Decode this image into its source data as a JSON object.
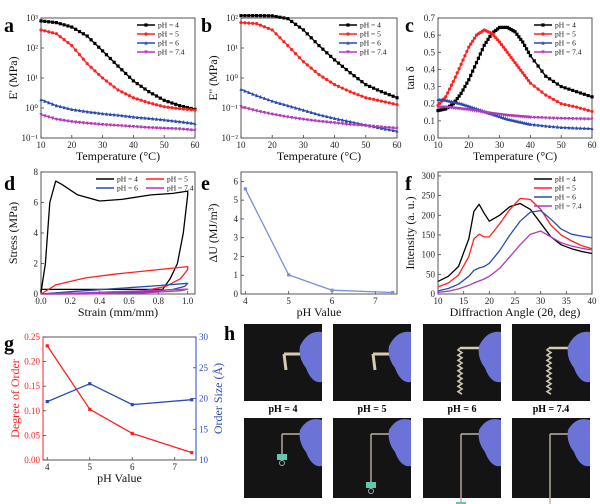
{
  "figure": {
    "panels": [
      "a",
      "b",
      "c",
      "d",
      "e",
      "f",
      "g",
      "h"
    ]
  },
  "chart_data": [
    {
      "id": "a",
      "type": "line",
      "title": "",
      "xlabel": "Temperature (°C)",
      "ylabel": "E' (MPa)",
      "yscale": "log",
      "xlim": [
        10,
        60
      ],
      "ylim": [
        0.1,
        1000
      ],
      "xticks": [
        10,
        20,
        30,
        40,
        50,
        60
      ],
      "yticks": [
        {
          "v": 0.1,
          "label": "10⁻¹"
        },
        {
          "v": 1,
          "label": "10⁰"
        },
        {
          "v": 10,
          "label": "10¹"
        },
        {
          "v": 100,
          "label": "10²"
        },
        {
          "v": 1000,
          "label": "10³"
        }
      ],
      "legend": "top-right",
      "x": [
        10,
        15,
        20,
        25,
        30,
        35,
        40,
        45,
        50,
        55,
        60
      ],
      "series": [
        {
          "name": "pH = 4",
          "color": "#000000",
          "marker": "square",
          "values": [
            800,
            700,
            500,
            250,
            80,
            25,
            8,
            3.5,
            1.8,
            1.2,
            0.9
          ]
        },
        {
          "name": "pH = 5",
          "color": "#ff2020",
          "marker": "circle",
          "values": [
            400,
            300,
            120,
            30,
            10,
            4,
            2.2,
            1.5,
            1.1,
            0.95,
            0.85
          ]
        },
        {
          "name": "pH = 6",
          "color": "#2a4bb0",
          "marker": "triangle-up",
          "values": [
            1.9,
            1.2,
            0.9,
            0.75,
            0.65,
            0.58,
            0.5,
            0.45,
            0.4,
            0.35,
            0.3
          ]
        },
        {
          "name": "pH = 7.4",
          "color": "#b03ab8",
          "marker": "triangle-down",
          "values": [
            0.6,
            0.42,
            0.35,
            0.31,
            0.28,
            0.26,
            0.24,
            0.22,
            0.21,
            0.2,
            0.18
          ]
        }
      ]
    },
    {
      "id": "b",
      "type": "line",
      "xlabel": "Temperature (°C)",
      "ylabel": "E'' (MPa)",
      "yscale": "log",
      "xlim": [
        10,
        60
      ],
      "ylim": [
        0.01,
        100
      ],
      "xticks": [
        10,
        20,
        30,
        40,
        50,
        60
      ],
      "yticks": [
        {
          "v": 0.01,
          "label": "10⁻²"
        },
        {
          "v": 0.1,
          "label": "10⁻¹"
        },
        {
          "v": 1,
          "label": "10⁰"
        },
        {
          "v": 10,
          "label": "10¹"
        },
        {
          "v": 100,
          "label": "10²"
        }
      ],
      "legend": "top-right",
      "x": [
        10,
        15,
        20,
        25,
        30,
        35,
        40,
        45,
        50,
        55,
        60
      ],
      "series": [
        {
          "name": "pH = 4",
          "color": "#000000",
          "marker": "square",
          "values": [
            120,
            120,
            118,
            95,
            40,
            12,
            4,
            1.5,
            0.6,
            0.35,
            0.22
          ]
        },
        {
          "name": "pH = 5",
          "color": "#ff2020",
          "marker": "circle",
          "values": [
            70,
            65,
            40,
            12,
            3.5,
            1.3,
            0.6,
            0.35,
            0.22,
            0.17,
            0.13
          ]
        },
        {
          "name": "pH = 6",
          "color": "#2a4bb0",
          "marker": "triangle-up",
          "values": [
            0.42,
            0.26,
            0.17,
            0.12,
            0.085,
            0.06,
            0.045,
            0.035,
            0.027,
            0.021,
            0.017
          ]
        },
        {
          "name": "pH = 7.4",
          "color": "#b03ab8",
          "marker": "triangle-down",
          "values": [
            0.11,
            0.08,
            0.062,
            0.05,
            0.042,
            0.036,
            0.032,
            0.028,
            0.026,
            0.023,
            0.021
          ]
        }
      ]
    },
    {
      "id": "c",
      "type": "line",
      "xlabel": "Temperature (°C)",
      "ylabel": "tan δ",
      "xlim": [
        10,
        60
      ],
      "ylim": [
        0.0,
        0.7
      ],
      "xticks": [
        10,
        20,
        30,
        40,
        50,
        60
      ],
      "yticks": [
        {
          "v": 0.0,
          "label": "0.0"
        },
        {
          "v": 0.1,
          "label": "0.1"
        },
        {
          "v": 0.2,
          "label": "0.2"
        },
        {
          "v": 0.3,
          "label": "0.3"
        },
        {
          "v": 0.4,
          "label": "0.4"
        },
        {
          "v": 0.5,
          "label": "0.5"
        },
        {
          "v": 0.6,
          "label": "0.6"
        },
        {
          "v": 0.7,
          "label": "0.7"
        }
      ],
      "legend": "top-right",
      "x": [
        10,
        12.5,
        15,
        17.5,
        20,
        22.5,
        25,
        27.5,
        30,
        32.5,
        35,
        37.5,
        40,
        45,
        50,
        55,
        60
      ],
      "series": [
        {
          "name": "pH = 4",
          "color": "#000000",
          "marker": "square",
          "values": [
            0.16,
            0.17,
            0.2,
            0.26,
            0.34,
            0.44,
            0.54,
            0.61,
            0.645,
            0.645,
            0.62,
            0.56,
            0.48,
            0.36,
            0.3,
            0.27,
            0.24
          ]
        },
        {
          "name": "pH = 5",
          "color": "#ff2020",
          "marker": "circle",
          "values": [
            0.19,
            0.24,
            0.33,
            0.43,
            0.53,
            0.6,
            0.63,
            0.61,
            0.56,
            0.5,
            0.44,
            0.38,
            0.32,
            0.25,
            0.2,
            0.18,
            0.155
          ]
        },
        {
          "name": "pH = 6",
          "color": "#2a4bb0",
          "marker": "triangle-up",
          "values": [
            0.225,
            0.22,
            0.21,
            0.2,
            0.185,
            0.17,
            0.155,
            0.14,
            0.125,
            0.11,
            0.1,
            0.09,
            0.08,
            0.07,
            0.062,
            0.058,
            0.055
          ]
        },
        {
          "name": "pH = 7.4",
          "color": "#b03ab8",
          "marker": "triangle-down",
          "values": [
            0.18,
            0.18,
            0.175,
            0.17,
            0.165,
            0.158,
            0.15,
            0.143,
            0.137,
            0.132,
            0.128,
            0.124,
            0.121,
            0.117,
            0.114,
            0.112,
            0.11
          ]
        }
      ]
    },
    {
      "id": "d",
      "type": "line",
      "xlabel": "Strain (mm/mm)",
      "ylabel": "Stress (MPa)",
      "xlim": [
        0,
        1.05
      ],
      "ylim": [
        0,
        8
      ],
      "xticks": [
        {
          "v": 0,
          "label": "0.0"
        },
        {
          "v": 0.2,
          "label": "0.2"
        },
        {
          "v": 0.4,
          "label": "0.4"
        },
        {
          "v": 0.6,
          "label": "0.6"
        },
        {
          "v": 0.8,
          "label": "0.8"
        },
        {
          "v": 1.0,
          "label": "1.0"
        }
      ],
      "yticks": [
        {
          "v": 0,
          "label": "0"
        },
        {
          "v": 2,
          "label": "2"
        },
        {
          "v": 4,
          "label": "4"
        },
        {
          "v": 6,
          "label": "6"
        },
        {
          "v": 8,
          "label": "8"
        }
      ],
      "legend": "top (2 columns)",
      "series": [
        {
          "name": "pH = 4",
          "color": "#000000",
          "points": [
            [
              0,
              0.1
            ],
            [
              0.03,
              2
            ],
            [
              0.06,
              6
            ],
            [
              0.1,
              7.4
            ],
            [
              0.14,
              7.2
            ],
            [
              0.25,
              6.5
            ],
            [
              0.4,
              6.1
            ],
            [
              0.55,
              6.2
            ],
            [
              0.75,
              6.5
            ],
            [
              0.9,
              6.6
            ],
            [
              1.0,
              6.75
            ],
            [
              1.0,
              6.5
            ],
            [
              0.97,
              4
            ],
            [
              0.93,
              2
            ],
            [
              0.88,
              1
            ],
            [
              0.83,
              0.3
            ],
            [
              0.6,
              0.3
            ],
            [
              0.3,
              0.3
            ],
            [
              0,
              0.3
            ]
          ]
        },
        {
          "name": "pH = 5",
          "color": "#ff2020",
          "points": [
            [
              0,
              0
            ],
            [
              0.1,
              0.6
            ],
            [
              0.3,
              1.05
            ],
            [
              0.5,
              1.3
            ],
            [
              0.8,
              1.6
            ],
            [
              1.0,
              1.8
            ],
            [
              1.0,
              1.6
            ],
            [
              0.95,
              1.0
            ],
            [
              0.85,
              0.5
            ],
            [
              0.7,
              0.2
            ],
            [
              0.5,
              0.05
            ],
            [
              0.3,
              0
            ],
            [
              0,
              0
            ]
          ]
        },
        {
          "name": "pH = 6",
          "color": "#2a4bb0",
          "points": [
            [
              0,
              0
            ],
            [
              0.2,
              0.15
            ],
            [
              0.5,
              0.35
            ],
            [
              0.8,
              0.55
            ],
            [
              1.0,
              0.7
            ],
            [
              0.98,
              0.5
            ],
            [
              0.9,
              0.3
            ],
            [
              0.7,
              0.12
            ],
            [
              0.4,
              0.02
            ],
            [
              0,
              0
            ]
          ]
        },
        {
          "name": "pH = 7.4",
          "color": "#b03ab8",
          "points": [
            [
              0,
              0
            ],
            [
              0.3,
              0.08
            ],
            [
              0.6,
              0.18
            ],
            [
              1.0,
              0.32
            ],
            [
              0.95,
              0.2
            ],
            [
              0.7,
              0.08
            ],
            [
              0.4,
              0.01
            ],
            [
              0,
              0
            ]
          ]
        }
      ]
    },
    {
      "id": "e",
      "type": "line",
      "xlabel": "pH Value",
      "ylabel": "ΔU (MJ/m³)",
      "xlim": [
        3.9,
        7.5
      ],
      "ylim": [
        0,
        6.5
      ],
      "xticks": [
        {
          "v": 4,
          "label": "4"
        },
        {
          "v": 5,
          "label": "5"
        },
        {
          "v": 6,
          "label": "6"
        },
        {
          "v": 7,
          "label": "7"
        }
      ],
      "yticks": [
        {
          "v": 0,
          "label": "0"
        },
        {
          "v": 1,
          "label": "1"
        },
        {
          "v": 2,
          "label": "2"
        },
        {
          "v": 3,
          "label": "3"
        },
        {
          "v": 4,
          "label": "4"
        },
        {
          "v": 5,
          "label": "5"
        },
        {
          "v": 6,
          "label": "6"
        }
      ],
      "series": [
        {
          "name": "ΔU",
          "color": "#7b8fd8",
          "marker": "square",
          "x": [
            4,
            5,
            6,
            7.4
          ],
          "values": [
            5.6,
            1.02,
            0.2,
            0.08
          ]
        }
      ]
    },
    {
      "id": "f",
      "type": "line",
      "xlabel": "Diffraction Angle (2θ, deg)",
      "ylabel": "Intensity (a. u.)",
      "xlim": [
        10,
        40
      ],
      "ylim": [
        0,
        310
      ],
      "xticks": [
        10,
        15,
        20,
        25,
        30,
        35,
        40
      ],
      "yticks": [
        {
          "v": 0,
          "label": "0"
        },
        {
          "v": 50,
          "label": "50"
        },
        {
          "v": 100,
          "label": "100"
        },
        {
          "v": 150,
          "label": "150"
        },
        {
          "v": 200,
          "label": "200"
        },
        {
          "v": 250,
          "label": "250"
        },
        {
          "v": 300,
          "label": "300"
        }
      ],
      "legend": "top-right",
      "x": [
        10,
        12,
        14,
        16,
        17,
        18,
        19,
        20,
        22,
        24,
        26,
        28,
        30,
        32,
        34,
        36,
        38,
        40
      ],
      "series": [
        {
          "name": "pH = 4",
          "color": "#000000",
          "values": [
            32,
            45,
            70,
            140,
            210,
            228,
            205,
            185,
            200,
            222,
            230,
            215,
            180,
            145,
            125,
            115,
            108,
            103
          ]
        },
        {
          "name": "pH = 5",
          "color": "#ff2020",
          "values": [
            18,
            28,
            48,
            95,
            140,
            152,
            145,
            145,
            178,
            215,
            243,
            240,
            215,
            175,
            150,
            135,
            123,
            115
          ]
        },
        {
          "name": "pH = 6",
          "color": "#2a4bb0",
          "values": [
            8,
            14,
            25,
            45,
            60,
            66,
            70,
            78,
            110,
            150,
            185,
            208,
            212,
            190,
            165,
            152,
            147,
            143
          ]
        },
        {
          "name": "pH = 7.4",
          "color": "#b03ab8",
          "values": [
            4,
            7,
            13,
            22,
            28,
            33,
            38,
            45,
            65,
            95,
            125,
            152,
            160,
            145,
            130,
            122,
            116,
            112
          ]
        }
      ]
    },
    {
      "id": "g",
      "type": "line",
      "xlabel": "pH Value",
      "ylabel": "Degree of Order",
      "ylabel_right": "Order Size (Å)",
      "xlim": [
        3.9,
        7.5
      ],
      "ylim": [
        0,
        0.25
      ],
      "ylim_right": [
        10,
        30
      ],
      "xticks": [
        {
          "v": 4,
          "label": "4"
        },
        {
          "v": 5,
          "label": "5"
        },
        {
          "v": 6,
          "label": "6"
        },
        {
          "v": 7,
          "label": "7"
        }
      ],
      "yticks": [
        {
          "v": 0,
          "label": "0.00"
        },
        {
          "v": 0.05,
          "label": "0.05"
        },
        {
          "v": 0.1,
          "label": "0.10"
        },
        {
          "v": 0.15,
          "label": "0.15"
        },
        {
          "v": 0.2,
          "label": "0.20"
        },
        {
          "v": 0.25,
          "label": "0.25"
        }
      ],
      "yticks_right": [
        {
          "v": 10,
          "label": "10"
        },
        {
          "v": 15,
          "label": "15"
        },
        {
          "v": 20,
          "label": "20"
        },
        {
          "v": 25,
          "label": "25"
        },
        {
          "v": 30,
          "label": "30"
        }
      ],
      "series": [
        {
          "name": "Degree of Order",
          "axis": "left",
          "color": "#ff2020",
          "marker": "square",
          "x": [
            4,
            5,
            6,
            7.4
          ],
          "values": [
            0.232,
            0.103,
            0.054,
            0.015
          ]
        },
        {
          "name": "Order Size",
          "axis": "right",
          "color": "#2a4bb0",
          "marker": "square",
          "x": [
            4,
            5,
            6,
            7.4
          ],
          "values": [
            19.5,
            22.4,
            19.0,
            19.8
          ]
        }
      ]
    }
  ],
  "photos": {
    "captions": [
      "pH = 4",
      "pH = 5",
      "pH = 6",
      "pH = 7.4"
    ],
    "rows": [
      "unloaded",
      "loaded-with-clip"
    ]
  }
}
